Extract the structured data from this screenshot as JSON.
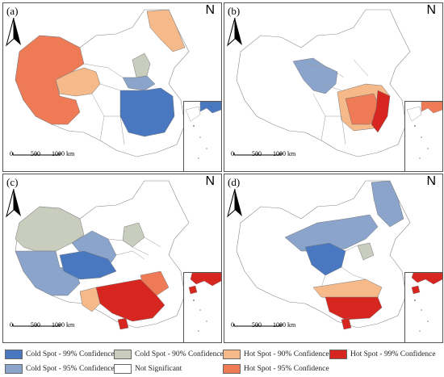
{
  "panels": [
    {
      "label": "(a)",
      "north": "N",
      "scale": [
        "0",
        "500",
        "1000 km"
      ]
    },
    {
      "label": "(b)",
      "north": "N",
      "scale": [
        "0",
        "500",
        "1000 km"
      ]
    },
    {
      "label": "(c)",
      "north": "N",
      "scale": [
        "0",
        "500",
        "1000 km"
      ]
    },
    {
      "label": "(d)",
      "north": "N",
      "scale": [
        "0",
        "500",
        "1000 km"
      ]
    }
  ],
  "colors": {
    "cold99": "#4a78c0",
    "cold95": "#8ba4cc",
    "cold90": "#c8cdbe",
    "hot90": "#f5b98a",
    "hot95": "#ee7b55",
    "hot99": "#d7261f",
    "none": "#ffffff"
  },
  "legend": [
    {
      "key": "cold99",
      "label": "Cold Spot - 99% Confidence"
    },
    {
      "key": "cold90",
      "label": "Cold Spot - 90% Confidence"
    },
    {
      "key": "hot90",
      "label": "Hot Spot - 90% Confidence"
    },
    {
      "key": "hot99",
      "label": "Hot Spot - 99% Confidence"
    },
    {
      "key": "cold95",
      "label": "Cold Spot - 95% Confidence"
    },
    {
      "key": "none",
      "label": "Not Significant"
    },
    {
      "key": "hot95",
      "label": "Hot Spot - 95% Confidence"
    }
  ]
}
